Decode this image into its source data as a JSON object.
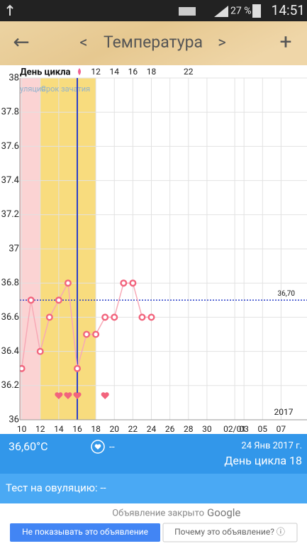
{
  "status_bar": {
    "battery": "27 %",
    "time": "14:51"
  },
  "header": {
    "back": "←",
    "prev": "<",
    "title": "Температура",
    "next": ">",
    "add": "+"
  },
  "chart_data": {
    "type": "line",
    "top_axis_label": "День цикла",
    "cycle_day_ticks": [
      {
        "value": 8,
        "label": "12"
      },
      {
        "value": 10,
        "label": "14"
      },
      {
        "value": 12,
        "label": "16"
      },
      {
        "value": 14,
        "label": "18"
      },
      {
        "value": 18,
        "label": "22"
      }
    ],
    "x": [
      0,
      1,
      2,
      3,
      4,
      5,
      6,
      7,
      8,
      9,
      10,
      11,
      12,
      13,
      14
    ],
    "values": [
      36.3,
      36.7,
      36.4,
      36.6,
      36.7,
      36.8,
      36.3,
      36.5,
      36.5,
      36.6,
      36.6,
      36.8,
      36.8,
      36.6,
      36.6
    ],
    "color": "#f2647d",
    "xlim": [
      -0.2,
      30.8
    ],
    "xticks": [
      {
        "value": 0,
        "label": "10"
      },
      {
        "value": 2,
        "label": "12"
      },
      {
        "value": 4,
        "label": "14"
      },
      {
        "value": 6,
        "label": "16"
      },
      {
        "value": 8,
        "label": "18"
      },
      {
        "value": 10,
        "label": "20"
      },
      {
        "value": 12,
        "label": "22"
      },
      {
        "value": 14,
        "label": "24"
      },
      {
        "value": 16,
        "label": "26"
      },
      {
        "value": 18,
        "label": "28"
      },
      {
        "value": 20,
        "label": "30"
      },
      {
        "value": 23,
        "label": "02/01"
      },
      {
        "value": 24,
        "label": "03"
      },
      {
        "value": 26,
        "label": "05"
      },
      {
        "value": 28,
        "label": "07"
      }
    ],
    "ylim": [
      36,
      38
    ],
    "yticks": [
      36,
      36.2,
      36.4,
      36.6,
      36.8,
      37,
      37.2,
      37.4,
      37.6,
      37.8,
      38
    ],
    "grid": true,
    "reference_line": {
      "value": 36.7,
      "label": "36,70"
    },
    "period": {
      "label": "уляция",
      "start": -0.2,
      "end": 2
    },
    "fertile_window": {
      "label": "Срок зачатия",
      "start": 2,
      "end": 8
    },
    "ovulation_day": 6,
    "heart_days": [
      4,
      5,
      6,
      9
    ],
    "year_label": "2017"
  },
  "summary": {
    "temperature": "36,60°C",
    "note": "--",
    "date": "24 Янв 2017 г.",
    "cycle_day": "День цикла 18"
  },
  "ovulation_test": "Тест на овуляцию: --",
  "ad": {
    "closed_prefix": "Объявление закрыто",
    "brand": "Google",
    "hide_button": "Не показывать это объявление",
    "why_button": "Почему это объявление? ⓘ"
  }
}
